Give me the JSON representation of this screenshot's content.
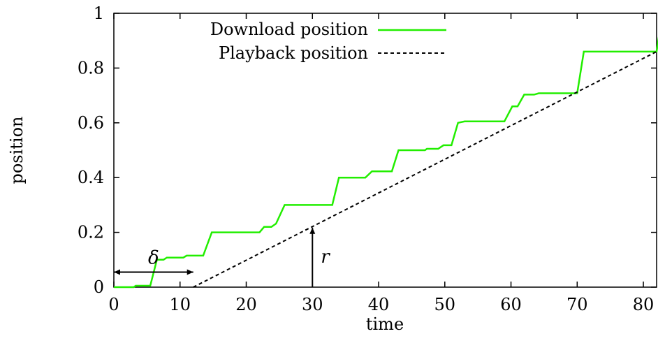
{
  "chart_data": {
    "type": "line",
    "title": "",
    "xlabel": "time",
    "ylabel": "position",
    "xlim": [
      0,
      82
    ],
    "ylim": [
      0,
      1
    ],
    "x_ticks": [
      0,
      10,
      20,
      30,
      40,
      50,
      60,
      70,
      80
    ],
    "x_tick_labels": [
      "0",
      "10",
      "20",
      "30",
      "40",
      "50",
      "60",
      "70",
      "80"
    ],
    "y_ticks": [
      0,
      0.2,
      0.4,
      0.6,
      0.8,
      1
    ],
    "y_tick_labels": [
      "0",
      "0.2",
      "0.4",
      "0.6",
      "0.8",
      "1"
    ],
    "grid": false,
    "legend": {
      "placement": "top-center"
    },
    "series": [
      {
        "name": "Download position",
        "color": "#22ee00",
        "style": "solid",
        "points": [
          [
            0,
            0
          ],
          [
            3,
            0
          ],
          [
            3.3,
            0.005
          ],
          [
            5.5,
            0.005
          ],
          [
            6.5,
            0.1
          ],
          [
            7.5,
            0.1
          ],
          [
            8,
            0.108
          ],
          [
            10.5,
            0.108
          ],
          [
            11,
            0.115
          ],
          [
            13.5,
            0.115
          ],
          [
            14.8,
            0.2
          ],
          [
            22,
            0.2
          ],
          [
            22.7,
            0.22
          ],
          [
            23.8,
            0.22
          ],
          [
            24.5,
            0.232
          ],
          [
            25.8,
            0.3
          ],
          [
            33,
            0.3
          ],
          [
            34,
            0.4
          ],
          [
            38,
            0.4
          ],
          [
            39,
            0.423
          ],
          [
            42,
            0.423
          ],
          [
            43,
            0.5
          ],
          [
            47,
            0.5
          ],
          [
            47.3,
            0.505
          ],
          [
            49,
            0.505
          ],
          [
            49.8,
            0.518
          ],
          [
            51,
            0.518
          ],
          [
            52,
            0.6
          ],
          [
            53,
            0.605
          ],
          [
            59,
            0.605
          ],
          [
            60.2,
            0.66
          ],
          [
            61,
            0.66
          ],
          [
            62,
            0.703
          ],
          [
            63.5,
            0.703
          ],
          [
            64.2,
            0.708
          ],
          [
            70,
            0.708
          ],
          [
            71,
            0.86
          ],
          [
            82,
            0.86
          ],
          [
            82.5,
            0.94
          ]
        ]
      },
      {
        "name": "Playback position",
        "color": "#000000",
        "style": "dashed",
        "points": [
          [
            12,
            0
          ],
          [
            82,
            0.86
          ]
        ]
      }
    ],
    "annotations": [
      {
        "text": "δ",
        "kind": "double-arrow",
        "x_from": 0,
        "x_to": 12,
        "y": 0.055
      },
      {
        "text": "r",
        "kind": "arrow",
        "x": 30,
        "y_from": 0,
        "y_to": 0.22
      }
    ]
  }
}
